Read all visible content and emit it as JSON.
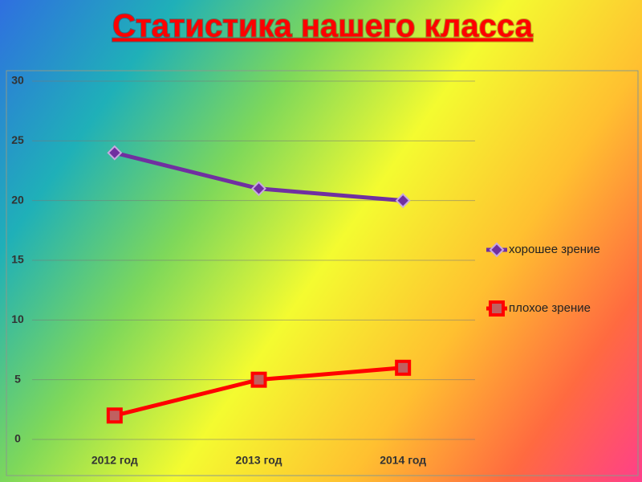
{
  "chart_data": {
    "type": "line",
    "title": "Статистика нашего класса",
    "categories": [
      "2012 год",
      "2013 год",
      "2014 год"
    ],
    "series": [
      {
        "name": "хорошее зрение",
        "color": "#7030a0",
        "marker": "diamond",
        "values": [
          24,
          21,
          20
        ]
      },
      {
        "name": "плохое зрение",
        "color": "#ff0000",
        "marker": "square",
        "values": [
          2,
          5,
          6
        ]
      }
    ],
    "ylim": [
      0,
      30
    ],
    "yticks": [
      0,
      5,
      10,
      15,
      20,
      25,
      30
    ],
    "grid": true,
    "legend": "right"
  }
}
